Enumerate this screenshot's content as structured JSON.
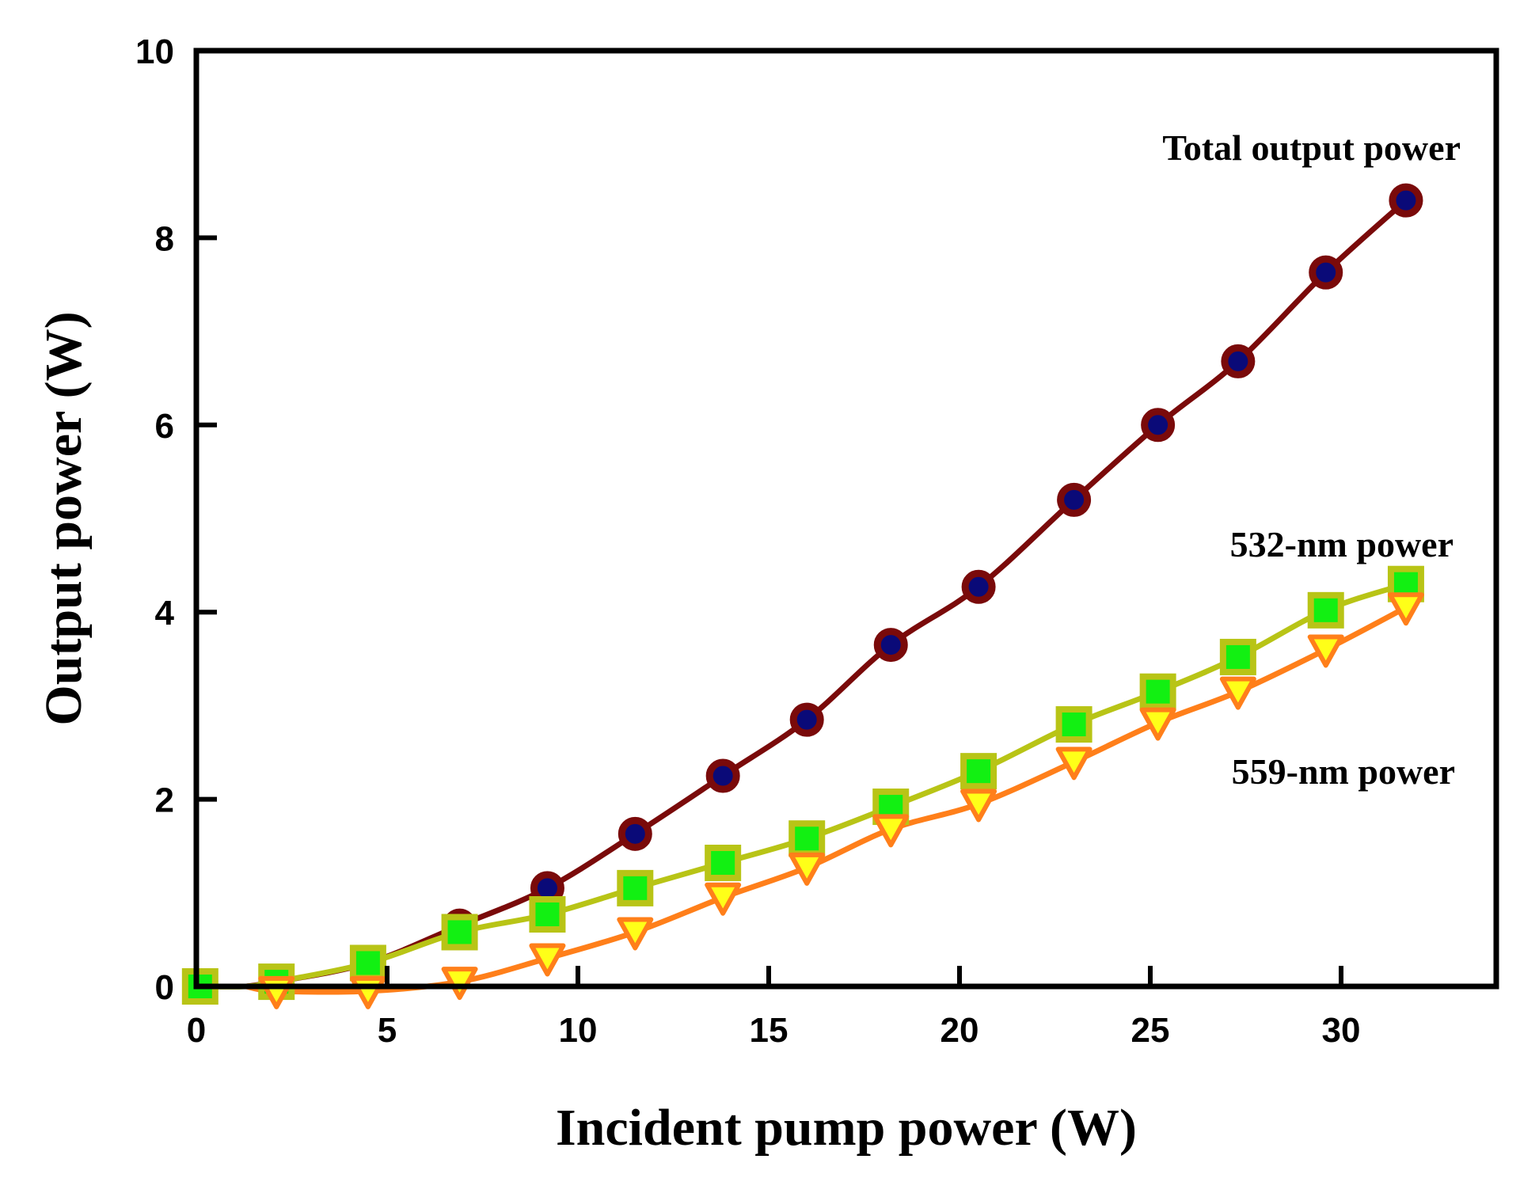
{
  "chart_data": {
    "type": "line",
    "title": "",
    "xlabel": "Incident pump power (W)",
    "ylabel": "Output power (W)",
    "xlim": [
      0,
      34
    ],
    "ylim": [
      0,
      10
    ],
    "xticks": [
      0,
      5,
      10,
      15,
      20,
      25,
      30
    ],
    "yticks": [
      0,
      2,
      4,
      6,
      8,
      10
    ],
    "xtick_labels": [
      "0",
      "5",
      "10",
      "15",
      "20",
      "25",
      "30"
    ],
    "ytick_labels": [
      "0",
      "2",
      "4",
      "6",
      "8",
      "10"
    ],
    "grid": false,
    "series": [
      {
        "name": "Total output power",
        "marker": "circle",
        "line_color": "#7a0a0a",
        "marker_fill": "#0a0a78",
        "marker_edge": "#7a0a0a",
        "x": [
          2.1,
          4.5,
          6.9,
          9.2,
          11.5,
          13.8,
          16.0,
          18.2,
          20.5,
          23.0,
          25.2,
          27.3,
          29.6,
          31.7
        ],
        "y": [
          0.05,
          0.25,
          0.65,
          1.05,
          1.63,
          2.25,
          2.85,
          3.65,
          4.27,
          5.2,
          6.0,
          6.68,
          7.63,
          8.4
        ]
      },
      {
        "name": "532-nm power",
        "marker": "square",
        "line_color": "#b8c416",
        "marker_fill": "#12f012",
        "marker_edge": "#b8c416",
        "x": [
          0.1,
          2.1,
          4.5,
          6.9,
          9.2,
          11.5,
          13.8,
          16.0,
          18.2,
          20.5,
          23.0,
          25.2,
          27.3,
          29.6,
          31.7
        ],
        "y": [
          0.0,
          0.05,
          0.25,
          0.58,
          0.77,
          1.05,
          1.32,
          1.58,
          1.92,
          2.3,
          2.8,
          3.15,
          3.52,
          4.02,
          4.3
        ]
      },
      {
        "name": "559-nm power",
        "marker": "triangle-down",
        "line_color": "#ff7f1a",
        "marker_fill": "#ffff18",
        "marker_edge": "#ff7f1a",
        "x": [
          2.1,
          4.5,
          6.9,
          9.2,
          11.5,
          13.8,
          16.0,
          18.2,
          20.5,
          23.0,
          25.2,
          27.3,
          29.6,
          31.7
        ],
        "y": [
          -0.05,
          -0.05,
          0.05,
          0.3,
          0.58,
          0.95,
          1.27,
          1.68,
          1.95,
          2.4,
          2.82,
          3.15,
          3.6,
          4.05
        ]
      }
    ],
    "annotations": [
      {
        "text": "Total output power",
        "series": 0
      },
      {
        "text": "532-nm power",
        "series": 1
      },
      {
        "text": "559-nm power",
        "series": 2
      }
    ]
  }
}
